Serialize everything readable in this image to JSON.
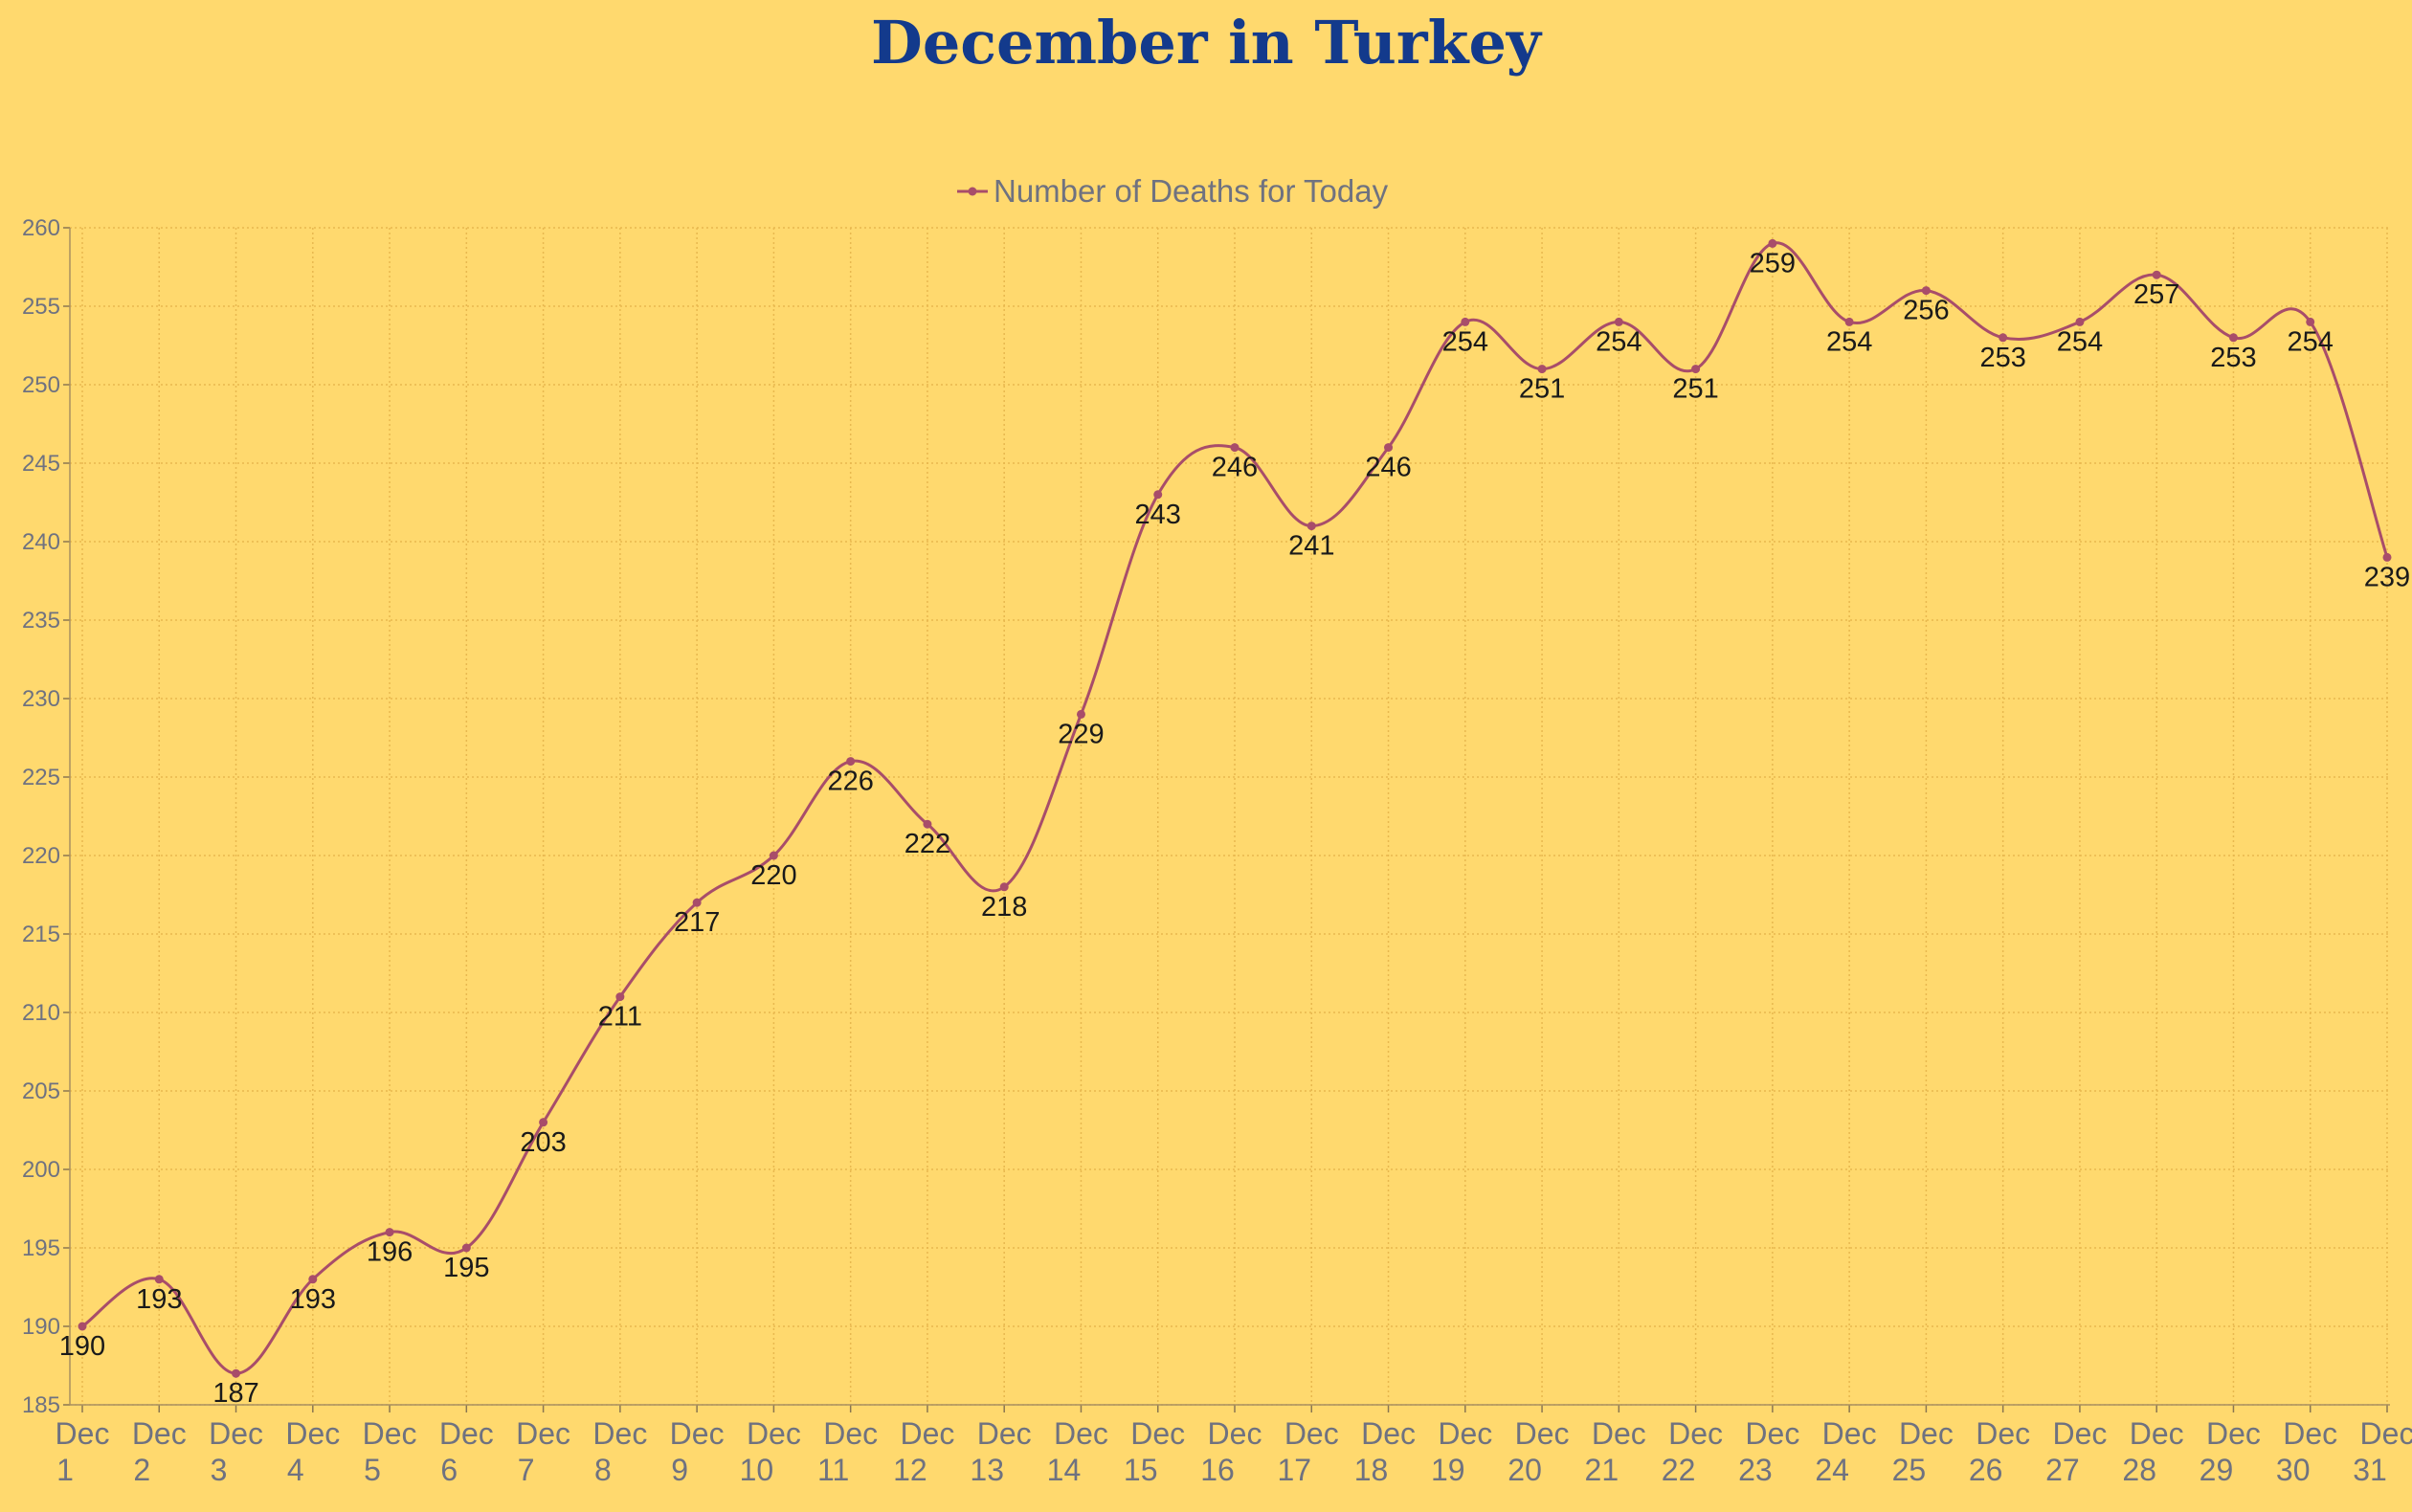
{
  "chart_data": {
    "type": "line",
    "title": "December in Turkey",
    "xlabel": "",
    "ylabel": "",
    "ylim": [
      185,
      260
    ],
    "yticks": [
      185,
      190,
      195,
      200,
      205,
      210,
      215,
      220,
      225,
      230,
      235,
      240,
      245,
      250,
      255,
      260
    ],
    "grid": true,
    "legend_position": "top-center",
    "categories": [
      "Dec 1",
      "Dec 2",
      "Dec 3",
      "Dec 4",
      "Dec 5",
      "Dec 6",
      "Dec 7",
      "Dec 8",
      "Dec 9",
      "Dec 10",
      "Dec 11",
      "Dec 12",
      "Dec 13",
      "Dec 14",
      "Dec 15",
      "Dec 16",
      "Dec 17",
      "Dec 18",
      "Dec 19",
      "Dec 20",
      "Dec 21",
      "Dec 22",
      "Dec 23",
      "Dec 24",
      "Dec 25",
      "Dec 26",
      "Dec 27",
      "Dec 28",
      "Dec 29",
      "Dec 30",
      "Dec 31"
    ],
    "series": [
      {
        "name": "Number of Deaths for Today",
        "color": "#A84D6A",
        "values": [
          190,
          193,
          187,
          193,
          196,
          195,
          203,
          211,
          217,
          220,
          226,
          222,
          218,
          229,
          243,
          246,
          241,
          246,
          254,
          251,
          254,
          251,
          259,
          254,
          256,
          253,
          254,
          257,
          253,
          254,
          239
        ]
      }
    ]
  }
}
